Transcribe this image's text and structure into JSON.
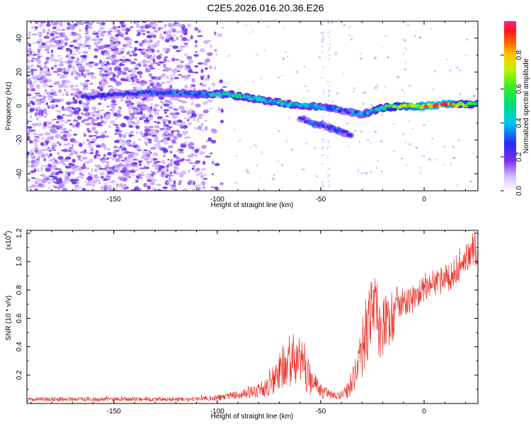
{
  "title": "C2E5.2026.016.20.36.E26",
  "chart_data": [
    {
      "type": "heatmap",
      "name": "spectrogram",
      "xlabel": "Height of straight line (km)",
      "ylabel": "Frequency (Hz)",
      "xlim": [
        -192,
        26
      ],
      "ylim": [
        -50,
        50
      ],
      "xticks": [
        -150,
        -100,
        -50,
        0
      ],
      "yticks": [
        -40,
        -20,
        0,
        20,
        40
      ],
      "colorbar": {
        "label": "Normalized spectral amplitude",
        "range": [
          0,
          1
        ],
        "ticks": [
          0.0,
          0.2,
          0.4,
          0.6,
          0.8
        ]
      },
      "ridge": {
        "x": [
          -165,
          -150,
          -130,
          -110,
          -95,
          -85,
          -75,
          -65,
          -55,
          -45,
          -38,
          -30,
          -25,
          -20,
          -10,
          0,
          10,
          20,
          26
        ],
        "y": [
          5,
          7,
          8,
          7,
          7,
          5,
          3,
          1,
          0,
          -1,
          -3,
          -5,
          -3,
          -1,
          0,
          0,
          1,
          1,
          1
        ],
        "amplitude": [
          0.25,
          0.25,
          0.3,
          0.35,
          0.45,
          0.45,
          0.4,
          0.45,
          0.4,
          0.35,
          0.3,
          0.35,
          0.4,
          0.5,
          0.7,
          0.85,
          0.9,
          0.6,
          0.5
        ]
      },
      "branch": {
        "x": [
          -60,
          -55,
          -50,
          -45,
          -40,
          -35
        ],
        "y": [
          -7,
          -10,
          -11,
          -13,
          -15,
          -17
        ],
        "amplitude": [
          0.25,
          0.3,
          0.3,
          0.3,
          0.3,
          0.3
        ]
      }
    },
    {
      "type": "line",
      "name": "snr",
      "xlabel": "Height of straight line (km)",
      "ylabel": "SNR (10 * v/v)",
      "y_scale_label": "(x10",
      "y_scale_exp": "4",
      "y_scale_close": ")",
      "xlim": [
        -192,
        26
      ],
      "ylim": [
        0,
        1.22
      ],
      "xticks": [
        -150,
        -100,
        -50,
        0
      ],
      "yticks": [
        0.2,
        0.4,
        0.6,
        0.8,
        1.0,
        1.2
      ],
      "color": "#e8342c",
      "envelope": {
        "x": [
          -192,
          -110,
          -100,
          -90,
          -80,
          -75,
          -70,
          -66,
          -62,
          -58,
          -54,
          -50,
          -45,
          -40,
          -36,
          -32,
          -29,
          -26,
          -24,
          -21,
          -18,
          -15,
          -12,
          -8,
          -4,
          0,
          5,
          10,
          15,
          20,
          24,
          26
        ],
        "y": [
          0.03,
          0.03,
          0.04,
          0.06,
          0.09,
          0.13,
          0.22,
          0.3,
          0.32,
          0.25,
          0.15,
          0.09,
          0.06,
          0.06,
          0.1,
          0.25,
          0.45,
          0.6,
          0.65,
          0.55,
          0.55,
          0.62,
          0.72,
          0.72,
          0.74,
          0.82,
          0.85,
          0.88,
          0.92,
          1.0,
          1.06,
          1.05
        ]
      },
      "spread": {
        "x": [
          -192,
          -110,
          -100,
          -90,
          -80,
          -75,
          -70,
          -66,
          -62,
          -58,
          -54,
          -50,
          -45,
          -40,
          -36,
          -32,
          -29,
          -26,
          -24,
          -21,
          -18,
          -15,
          -12,
          -8,
          -4,
          0,
          5,
          10,
          15,
          20,
          24,
          26
        ],
        "y": [
          0.015,
          0.015,
          0.02,
          0.03,
          0.05,
          0.08,
          0.14,
          0.18,
          0.2,
          0.16,
          0.1,
          0.05,
          0.03,
          0.03,
          0.06,
          0.14,
          0.24,
          0.27,
          0.28,
          0.26,
          0.22,
          0.18,
          0.12,
          0.1,
          0.1,
          0.1,
          0.1,
          0.1,
          0.1,
          0.1,
          0.12,
          0.12
        ]
      }
    }
  ]
}
